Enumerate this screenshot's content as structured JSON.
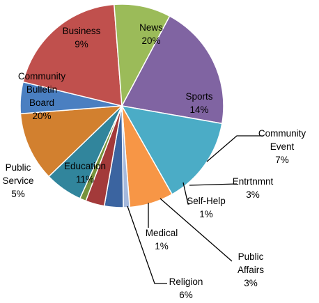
{
  "chart_data": {
    "type": "pie",
    "title": "",
    "slices": [
      {
        "label": [
          "News"
        ],
        "pct": "20%",
        "value": 20,
        "color": "#8064a2",
        "placement": "inside"
      },
      {
        "label": [
          "Sports"
        ],
        "pct": "14%",
        "value": 14,
        "color": "#4bacc6",
        "placement": "inside"
      },
      {
        "label": [
          "Community",
          "Event"
        ],
        "pct": "7%",
        "value": 7,
        "color": "#f79646",
        "placement": "outside"
      },
      {
        "label": [
          "Self-Help"
        ],
        "pct": "1%",
        "value": 1,
        "color": "#a5b9dd",
        "placement": "outside"
      },
      {
        "label": [
          "Entrtnmnt"
        ],
        "pct": "3%",
        "value": 3,
        "color": "#3b64a0",
        "placement": "outside"
      },
      {
        "label": [
          "Public",
          "Affairs"
        ],
        "pct": "3%",
        "value": 3,
        "color": "#a33a3a",
        "placement": "outside"
      },
      {
        "label": [
          "Medical"
        ],
        "pct": "1%",
        "value": 1,
        "color": "#77933c",
        "placement": "outside"
      },
      {
        "label": [
          "Religion"
        ],
        "pct": "6%",
        "value": 6,
        "color": "#31859c",
        "placement": "outside"
      },
      {
        "label": [
          "Education"
        ],
        "pct": "11%",
        "value": 11,
        "color": "#d2802f",
        "placement": "inside"
      },
      {
        "label": [
          "Public",
          "Service"
        ],
        "pct": "5%",
        "value": 5,
        "color": "#4a7fc1",
        "placement": "outside"
      },
      {
        "label": [
          "Community",
          "Bulletin",
          "Board"
        ],
        "pct": "20%",
        "value": 20,
        "color": "#c0504d",
        "placement": "inside"
      },
      {
        "label": [
          "Business"
        ],
        "pct": "9%",
        "value": 9,
        "color": "#9bbb59",
        "placement": "inside"
      }
    ]
  }
}
